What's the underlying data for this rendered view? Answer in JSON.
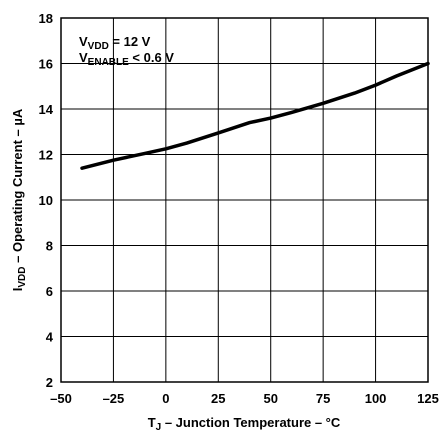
{
  "chart_data": {
    "type": "line",
    "xlabel": {
      "main": "T",
      "sub": "J",
      "rest": " – Junction Temperature – °C"
    },
    "ylabel": {
      "main": "I",
      "sub": "VDD",
      "rest": " – Operating Current – µA"
    },
    "xlim": [
      -50,
      125
    ],
    "ylim": [
      2,
      18
    ],
    "xticks": [
      -50,
      -25,
      0,
      25,
      50,
      75,
      100,
      125
    ],
    "yticks": [
      2,
      4,
      6,
      8,
      10,
      12,
      14,
      16,
      18
    ],
    "xtick_labels": [
      "–50",
      "–25",
      "0",
      "25",
      "50",
      "75",
      "100",
      "125"
    ],
    "ytick_labels": [
      "2",
      "4",
      "6",
      "8",
      "10",
      "12",
      "14",
      "16",
      "18"
    ],
    "grid": true,
    "annotations": [
      {
        "main": "V",
        "sub": "VDD",
        "rest": " = 12 V"
      },
      {
        "main": "V",
        "sub": "ENABLE",
        "rest": " < 0.6 V"
      }
    ],
    "series": [
      {
        "x": [
          -40,
          -25,
          -10,
          0,
          10,
          25,
          40,
          50,
          60,
          75,
          90,
          100,
          110,
          125
        ],
        "y": [
          11.4,
          11.75,
          12.05,
          12.25,
          12.5,
          12.95,
          13.4,
          13.6,
          13.85,
          14.25,
          14.7,
          15.05,
          15.45,
          16.0
        ]
      }
    ]
  }
}
